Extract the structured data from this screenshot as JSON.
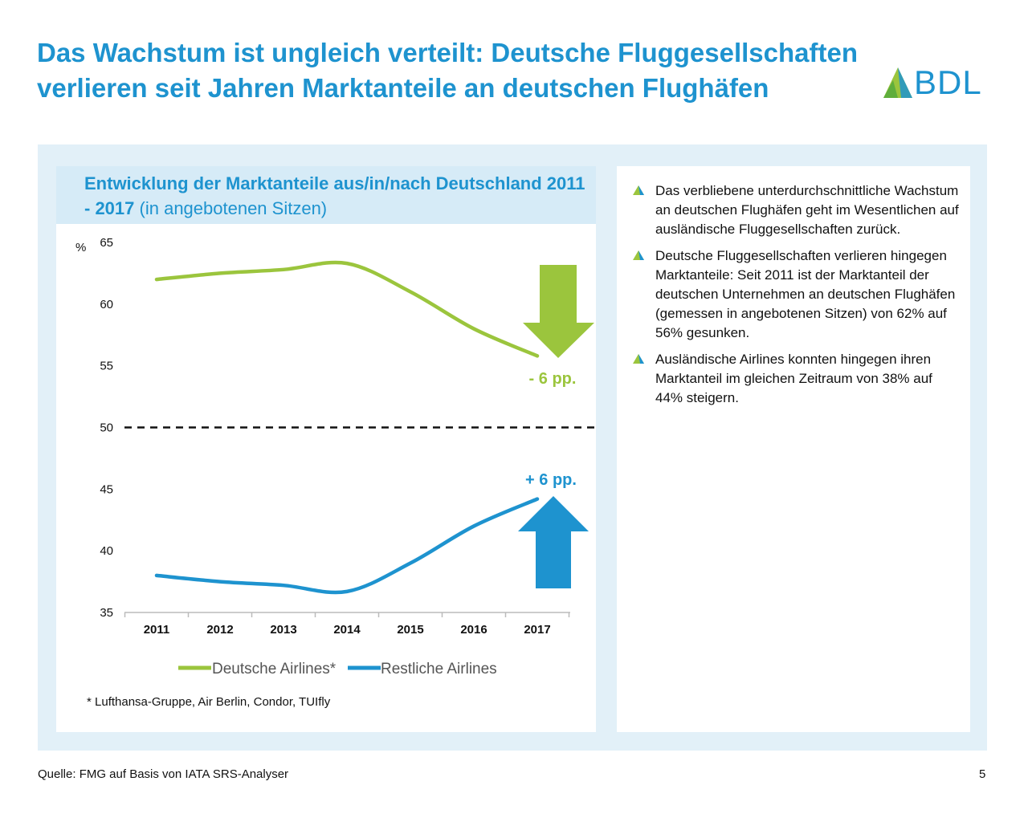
{
  "header": {
    "title": "Das Wachstum ist ungleich verteilt: Deutsche Fluggesellschaften verlieren seit Jahren Marktanteile an deutschen Flughäfen",
    "logo_text": "BDL"
  },
  "chart_card": {
    "title_bold": "Entwicklung der Marktanteile aus/in/nach Deutschland 2011 - 2017",
    "title_regular": "(in angebotenen Sitzen)",
    "footnote": "* Lufthansa-Gruppe, Air Berlin, Condor, TUIfly"
  },
  "chart_data": {
    "type": "line",
    "x": [
      "2011",
      "2012",
      "2013",
      "2014",
      "2015",
      "2016",
      "2017"
    ],
    "series": [
      {
        "name": "Deutsche Airlines*",
        "color": "#9bc53d",
        "values": [
          62.0,
          62.5,
          62.8,
          63.3,
          61.0,
          58.0,
          55.8
        ]
      },
      {
        "name": "Restliche Airlines",
        "color": "#1e93cf",
        "values": [
          38.0,
          37.5,
          37.2,
          36.7,
          39.0,
          42.0,
          44.2
        ]
      }
    ],
    "ylabel": "%",
    "ylim": [
      35,
      65
    ],
    "yticks": [
      "65",
      "60",
      "55",
      "50",
      "45",
      "40",
      "35"
    ],
    "reference_line": 50,
    "annotations": {
      "down": {
        "label": "- 6 pp.",
        "color": "#9bc53d"
      },
      "up": {
        "label": "+ 6 pp.",
        "color": "#1e93cf"
      }
    },
    "legend_position": "bottom",
    "grid": false
  },
  "bullets": [
    "Das verbliebene unterdurchschnittliche Wachstum an deutschen Flughäfen geht im Wesentlichen auf ausländische Fluggesellschaften zurück.",
    "Deutsche Fluggesellschaften verlieren hingegen Marktanteile: Seit 2011 ist der Marktanteil der deutschen Unternehmen an deutschen Flughäfen (gemessen in angebotenen Sitzen) von 62% auf 56% gesunken.",
    "Ausländische Airlines konnten hingegen ihren Marktanteil im gleichen Zeitraum von 38% auf 44% steigern."
  ],
  "footer": {
    "source": "Quelle: FMG auf Basis von IATA SRS-Analyser",
    "page": "5"
  },
  "colors": {
    "brand_blue": "#1e93cf",
    "brand_green": "#9bc53d",
    "panel_bg": "#e2f0f8"
  }
}
